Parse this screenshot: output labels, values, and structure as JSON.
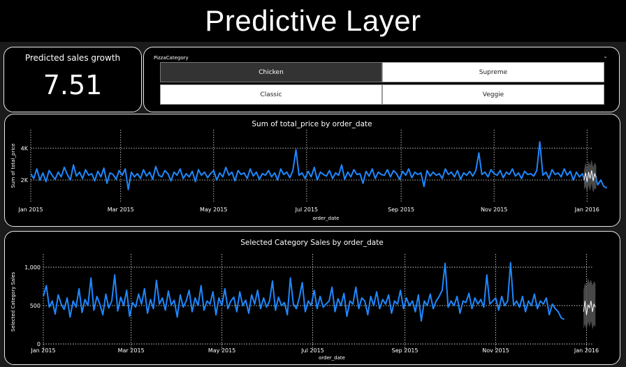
{
  "page": {
    "title": "Predictive Layer"
  },
  "kpi": {
    "label": "Predicted sales growth",
    "value": "7.51"
  },
  "slicer": {
    "title": "PizzaCategory",
    "options": [
      {
        "label": "Chicken",
        "selected": true
      },
      {
        "label": "Supreme",
        "selected": false
      },
      {
        "label": "Classic",
        "selected": false
      },
      {
        "label": "Veggie",
        "selected": false
      }
    ]
  },
  "colors": {
    "series": "#1e88ff",
    "forecast": "#ffffff",
    "band": "#555555",
    "grid": "#cfcfcf"
  },
  "chart_data": [
    {
      "type": "line",
      "title": "Sum of total_price by order_date",
      "xlabel": "order_date",
      "ylabel": "Sum of total_price",
      "x_ticks": [
        "Jan 2015",
        "Mar 2015",
        "May 2015",
        "Jul 2015",
        "Sep 2015",
        "Nov 2015",
        "Jan 2016"
      ],
      "y_ticks": [
        "2K",
        "4K"
      ],
      "y_tick_values": [
        2000,
        4000
      ],
      "ylim": [
        1000,
        4800
      ],
      "xlim": [
        "2015-01-01",
        "2016-01-05"
      ],
      "grid": true,
      "series": [
        {
          "start": "2015-01-01",
          "step_days": 2,
          "values": [
            2400,
            2100,
            2700,
            2000,
            2450,
            1900,
            2600,
            2300,
            2050,
            2500,
            2200,
            2800,
            2350,
            2000,
            2950,
            2250,
            2500,
            2100,
            2650,
            2300,
            2400,
            1950,
            2550,
            2200,
            2750,
            1800,
            2450,
            2350,
            2050,
            2600,
            2300,
            2700,
            1400,
            2500,
            2200,
            2400,
            2100,
            2650,
            2250,
            2500,
            2050,
            2850,
            2300,
            2200,
            2600,
            2400,
            1950,
            2500,
            2300,
            2700,
            2100,
            2400,
            2200,
            2550,
            1900,
            2650,
            2300,
            2500,
            2150,
            2400,
            2600,
            2000,
            2450,
            2200,
            2800,
            2300,
            2500,
            1950,
            2600,
            2350,
            2450,
            2100,
            2700,
            2250,
            2500,
            2050,
            2400,
            2300,
            2600,
            2200,
            2450,
            2000,
            2700,
            2350,
            2500,
            2150,
            2600,
            3900,
            2300,
            2450,
            2100,
            2550,
            2200,
            2800,
            2000,
            2500,
            2350,
            2250,
            2600,
            2100,
            2450,
            2300,
            2950,
            2050,
            2500,
            2200,
            2650,
            2350,
            2400,
            1800,
            2550,
            2250,
            2700,
            2100,
            2500,
            2350,
            2300,
            2650,
            2200,
            2600,
            2400,
            2050,
            2550,
            2300,
            2700,
            2150,
            2500,
            2350,
            2450,
            1600,
            2600,
            2250,
            2500,
            2300,
            2400,
            2100,
            2700,
            2350,
            2500,
            2200,
            2600,
            2050,
            2450,
            2300,
            2550,
            2250,
            2600,
            3700,
            2350,
            2500,
            2200,
            2650,
            2400,
            2300,
            2600,
            2150,
            2500,
            2350,
            2700,
            2250,
            2450,
            2100,
            2550,
            2350,
            2400,
            2250,
            2600,
            4400,
            2300,
            2500,
            2100,
            2650,
            2350,
            2450,
            2200,
            2700,
            2300,
            2550,
            2000,
            2500,
            2200,
            2400,
            1800,
            2300,
            2100,
            2500,
            1700,
            2000,
            1600,
            1500
          ]
        },
        {
          "name": "forecast",
          "start": "2015-12-30",
          "step_days": 1,
          "values": [
            2000,
            2450,
            1900,
            2500,
            2100,
            2600,
            1950,
            2400,
            2150
          ],
          "band_upper": [
            2600,
            3100,
            2700,
            3200,
            2900,
            3300,
            2800,
            3100,
            2900
          ],
          "band_lower": [
            1400,
            1600,
            1200,
            1700,
            1300,
            1800,
            1200,
            1500,
            1400
          ]
        }
      ]
    },
    {
      "type": "line",
      "title": "Selected Category Sales by order_date",
      "xlabel": "order_date",
      "ylabel": "Selected Category Sales",
      "x_ticks": [
        "Jan 2015",
        "Mar 2015",
        "May 2015",
        "Jul 2015",
        "Sep 2015",
        "Nov 2015",
        "Jan 2016"
      ],
      "y_ticks": [
        "0",
        "500",
        "1,000"
      ],
      "y_tick_values": [
        0,
        500,
        1000
      ],
      "ylim": [
        0,
        1100
      ],
      "xlim": [
        "2015-01-01",
        "2016-01-05"
      ],
      "grid": true,
      "series": [
        {
          "start": "2015-01-01",
          "step_days": 2,
          "values": [
            620,
            760,
            480,
            560,
            390,
            640,
            520,
            450,
            600,
            350,
            560,
            480,
            720,
            410,
            580,
            500,
            860,
            440,
            620,
            520,
            380,
            650,
            470,
            560,
            900,
            430,
            610,
            500,
            700,
            360,
            540,
            480,
            650,
            520,
            720,
            400,
            580,
            460,
            830,
            520,
            600,
            440,
            690,
            510,
            570,
            350,
            640,
            480,
            560,
            700,
            420,
            600,
            500,
            760,
            440,
            560,
            520,
            680,
            380,
            600,
            500,
            720,
            460,
            560,
            610,
            420,
            680,
            500,
            570,
            400,
            640,
            520,
            700,
            460,
            600,
            480,
            560,
            820,
            440,
            610,
            500,
            540,
            380,
            860,
            520,
            460,
            600,
            800,
            420,
            560,
            500,
            700,
            460,
            620,
            480,
            520,
            560,
            740,
            420,
            590,
            500,
            660,
            360,
            560,
            520,
            740,
            460,
            600,
            560,
            380,
            620,
            500,
            680,
            460,
            580,
            520,
            640,
            400,
            560,
            520,
            700,
            460,
            600,
            500,
            560,
            420,
            640,
            300,
            560,
            500,
            650,
            460,
            560,
            620,
            700,
            1050,
            480,
            560,
            500,
            620,
            400,
            560,
            540,
            660,
            460,
            600,
            520,
            580,
            480,
            900,
            520,
            560,
            600,
            440,
            620,
            500,
            560,
            1060,
            500,
            560,
            480,
            620,
            420,
            560,
            500,
            650,
            460,
            560,
            520,
            600,
            380,
            520,
            460,
            420,
            340,
            320
          ]
        },
        {
          "name": "forecast",
          "start": "2015-12-30",
          "step_days": 1,
          "values": [
            420,
            560,
            380,
            510,
            470,
            560,
            420,
            520,
            480
          ],
          "band_upper": [
            700,
            800,
            740,
            860,
            790,
            840,
            760,
            820,
            780
          ],
          "band_lower": [
            200,
            260,
            180,
            290,
            220,
            300,
            190,
            250,
            220
          ]
        }
      ]
    }
  ]
}
